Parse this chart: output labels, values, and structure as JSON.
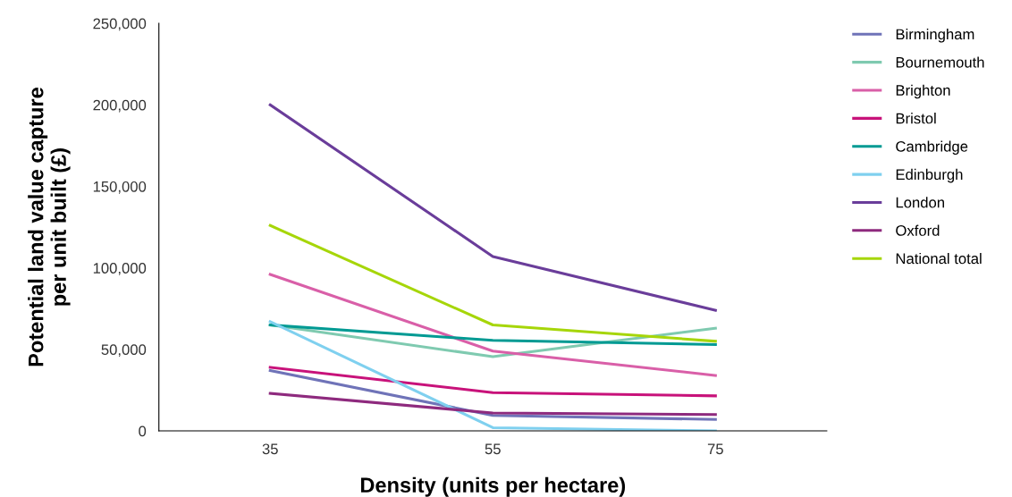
{
  "chart_data": {
    "type": "line",
    "xlabel": "Density (units per hectare)",
    "ylabel": "Potential land value capture\nper unit built (£)",
    "x": [
      35,
      55,
      75
    ],
    "xlim": [
      25,
      85
    ],
    "xticks": [
      35,
      55,
      75
    ],
    "ylim": [
      0,
      250000
    ],
    "yticks": [
      {
        "value": 0,
        "label": "0"
      },
      {
        "value": 50000,
        "label": "50,000"
      },
      {
        "value": 100000,
        "label": "100,000"
      },
      {
        "value": 150000,
        "label": "150,000"
      },
      {
        "value": 200000,
        "label": "200,000"
      },
      {
        "value": 250000,
        "label": "250,000"
      }
    ],
    "grid": false,
    "legend": "right",
    "marker": "none",
    "line_style": "solid",
    "series": [
      {
        "name": "Birmingham",
        "color": "#6f73b8",
        "values": [
          37000,
          9500,
          7000
        ]
      },
      {
        "name": "Bournemouth",
        "color": "#7fcab0",
        "values": [
          65000,
          45500,
          63000
        ]
      },
      {
        "name": "Brighton",
        "color": "#d95fa8",
        "values": [
          96000,
          49000,
          34000
        ]
      },
      {
        "name": "Bristol",
        "color": "#c8127a",
        "values": [
          39000,
          23500,
          21500
        ]
      },
      {
        "name": "Cambridge",
        "color": "#009a93",
        "values": [
          65000,
          55500,
          53000
        ]
      },
      {
        "name": "Edinburgh",
        "color": "#7fd0ef",
        "values": [
          67000,
          2000,
          0
        ]
      },
      {
        "name": "London",
        "color": "#6a3d9a",
        "values": [
          200000,
          107000,
          74000
        ]
      },
      {
        "name": "Oxford",
        "color": "#8e2a7e",
        "values": [
          23000,
          11000,
          10000
        ]
      },
      {
        "name": "National total",
        "color": "#a6d609",
        "values": [
          126000,
          65000,
          55000
        ]
      }
    ]
  }
}
